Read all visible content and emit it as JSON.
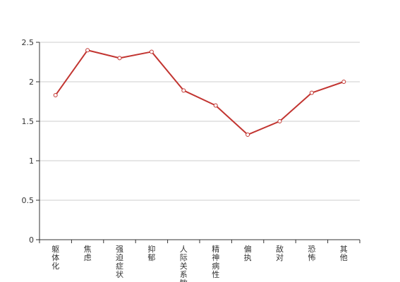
{
  "chart_data": {
    "type": "line",
    "title": "",
    "xlabel": "",
    "ylabel": "",
    "categories": [
      "躯体化",
      "焦虑",
      "强迫症状",
      "抑郁",
      "人际关系敏感",
      "精神病性",
      "偏执",
      "敌对",
      "恐怖",
      "其他"
    ],
    "series": [
      {
        "values": [
          1.83,
          2.4,
          2.3,
          2.38,
          1.89,
          1.7,
          1.33,
          1.5,
          1.86,
          2.0
        ]
      }
    ],
    "ylim": [
      0,
      2.5
    ],
    "yticks": [
      "0",
      "0.5",
      "1",
      "1.5",
      "2",
      "2.5"
    ],
    "grid": true,
    "legend": "none",
    "colors": {
      "line": "#c23531",
      "grid": "#cccccc",
      "axis": "#333333"
    }
  }
}
